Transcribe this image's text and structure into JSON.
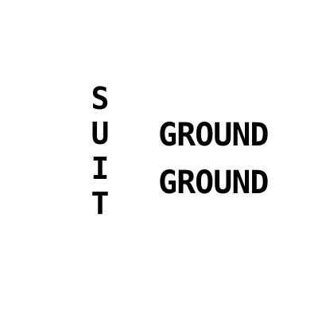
{
  "vertical_word": {
    "letters": [
      "S",
      "U",
      "I",
      "T"
    ]
  },
  "words": [
    "GROUND",
    "GROUND"
  ]
}
